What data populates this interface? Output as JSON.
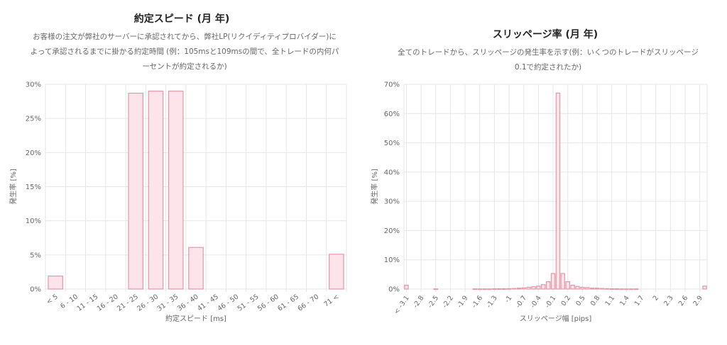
{
  "left": {
    "title": "約定スピード (月 年)",
    "subtitle_lines": [
      "お客様の注文が弊社のサーバーに承認されてから、弊社LP(リクイディティプロバイダー)に",
      "よって承認されるまでに掛かる約定時間 (例：105msと109msの間で、全トレードの内何パ",
      "ーセントが約定されるか)"
    ]
  },
  "right": {
    "title": "スリッページ率 (月 年)",
    "subtitle_lines": [
      "全てのトレードから、スリッページの発生率を示す(例：いくつのトレードがスリッページ",
      "0.1で約定されたか)"
    ]
  },
  "colors": {
    "bar_fill": "#fde3ea",
    "bar_stroke": "#e596a8",
    "grid": "#e6e6e6",
    "axis_text": "#666666"
  },
  "chart_data": [
    {
      "type": "bar",
      "title": "約定スピード (月 年)",
      "xlabel": "約定スピード [ms]",
      "ylabel": "発生率 [%]",
      "categories": [
        "< 5",
        "6 - 10",
        "11 - 15",
        "16 - 20",
        "21 - 25",
        "26 - 30",
        "31 - 35",
        "36 - 40",
        "41 - 45",
        "46 - 50",
        "51 - 55",
        "56 - 60",
        "61 - 65",
        "66 - 70",
        "71 <"
      ],
      "values": [
        1.9,
        0,
        0,
        0,
        28.7,
        29.0,
        29.0,
        6.1,
        0,
        0,
        0,
        0,
        0,
        0,
        5.1
      ],
      "ylim": [
        0,
        30
      ],
      "yticks": [
        "0%",
        "5%",
        "10%",
        "15%",
        "20%",
        "25%",
        "30%"
      ],
      "ytick_values": [
        0,
        5,
        10,
        15,
        20,
        25,
        30
      ],
      "grid": true
    },
    {
      "type": "bar",
      "title": "スリッページ率 (月 年)",
      "xlabel": "スリッページ幅 [pips]",
      "ylabel": "発生率 [%]",
      "categories": [
        "< -3.1",
        "-3",
        "-2.9",
        "-2.8",
        "-2.7",
        "-2.6",
        "-2.5",
        "-2.4",
        "-2.3",
        "-2.2",
        "-2.1",
        "-2",
        "-1.9",
        "-1.8",
        "-1.7",
        "-1.6",
        "-1.5",
        "-1.4",
        "-1.3",
        "-1.2",
        "-1.1",
        "-1",
        "-0.9",
        "-0.8",
        "-0.7",
        "-0.6",
        "-0.5",
        "-0.4",
        "-0.3",
        "-0.2",
        "-0.1",
        "0",
        "0.1",
        "0.2",
        "0.3",
        "0.4",
        "0.5",
        "0.6",
        "0.7",
        "0.8",
        "0.9",
        "1",
        "1.1",
        "1.2",
        "1.3",
        "1.4",
        "1.5",
        "1.6",
        "1.7",
        "1.8",
        "1.9",
        "2",
        "2.1",
        "2.2",
        "2.3",
        "2.4",
        "2.5",
        "2.6",
        "2.7",
        "2.8",
        "2.9",
        "3 <"
      ],
      "tick_labels": [
        "< -3.1",
        "-2.8",
        "-2.5",
        "-2.2",
        "-1.9",
        "-1.6",
        "-1.3",
        "-1",
        "-0.7",
        "-0.4",
        "-0.1",
        "0.2",
        "0.5",
        "0.8",
        "1.1",
        "1.4",
        "1.7",
        "2",
        "2.3",
        "2.6",
        "2.9"
      ],
      "values": [
        1.3,
        0,
        0,
        0,
        0,
        0,
        0.05,
        0,
        0,
        0,
        0,
        0,
        0,
        0,
        0.05,
        0.05,
        0.05,
        0.05,
        0.1,
        0.1,
        0.1,
        0.15,
        0.2,
        0.3,
        0.4,
        0.6,
        0.8,
        1.0,
        1.5,
        2.5,
        5.3,
        67.0,
        5.3,
        2.5,
        1.3,
        0.9,
        0.6,
        0.5,
        0.3,
        0.3,
        0.2,
        0.15,
        0.1,
        0.1,
        0.05,
        0.05,
        0.05,
        0.05,
        0,
        0,
        0,
        0,
        0,
        0,
        0,
        0,
        0,
        0,
        0,
        0,
        0,
        1.0
      ],
      "ylim": [
        0,
        70
      ],
      "yticks": [
        "0%",
        "10%",
        "20%",
        "30%",
        "40%",
        "50%",
        "60%",
        "70%"
      ],
      "ytick_values": [
        0,
        10,
        20,
        30,
        40,
        50,
        60,
        70
      ],
      "grid": true
    }
  ]
}
